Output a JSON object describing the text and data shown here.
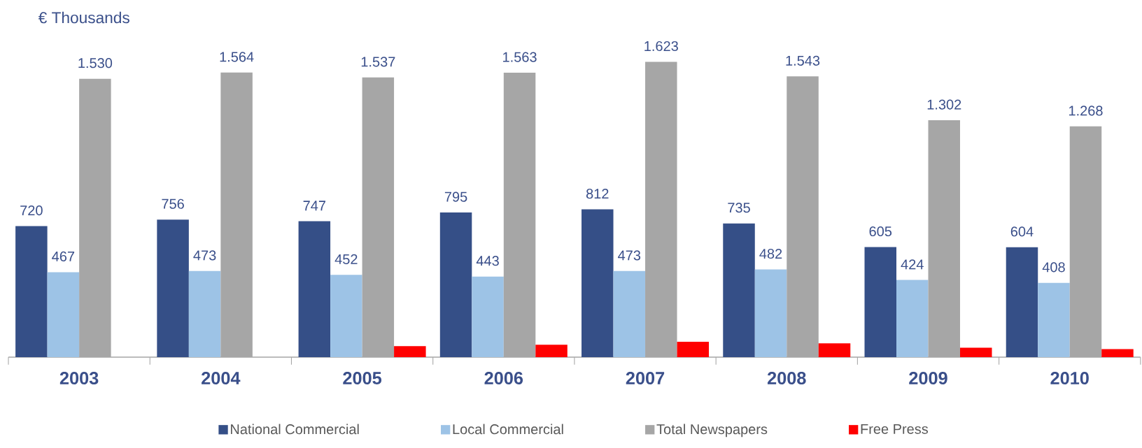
{
  "chart_data": {
    "type": "bar",
    "title": "€ Thousands",
    "categories": [
      "2003",
      "2004",
      "2005",
      "2006",
      "2007",
      "2008",
      "2009",
      "2010"
    ],
    "series": [
      {
        "name": "National Commercial",
        "color": "#354f87",
        "values": [
          720,
          756,
          747,
          795,
          812,
          735,
          605,
          604
        ],
        "value_labels": [
          "720",
          "756",
          "747",
          "795",
          "812",
          "735",
          "605",
          "604"
        ]
      },
      {
        "name": "Local Commercial",
        "color": "#9dc3e6",
        "values": [
          467,
          473,
          452,
          443,
          473,
          482,
          424,
          408
        ],
        "value_labels": [
          "467",
          "473",
          "452",
          "443",
          "473",
          "482",
          "424",
          "408"
        ]
      },
      {
        "name": "Total Newspapers",
        "color": "#a6a6a6",
        "values": [
          1530,
          1564,
          1537,
          1563,
          1623,
          1543,
          1302,
          1268
        ],
        "value_labels": [
          "1.530",
          "1.564",
          "1.537",
          "1.563",
          "1.623",
          "1.543",
          "1.302",
          "1.268"
        ]
      },
      {
        "name": "Free Press",
        "color": "#ff0000",
        "values": [
          null,
          null,
          60,
          68,
          84,
          76,
          52,
          44
        ]
      }
    ],
    "legend": "bottom",
    "grid": false,
    "tick_labels": "x"
  }
}
